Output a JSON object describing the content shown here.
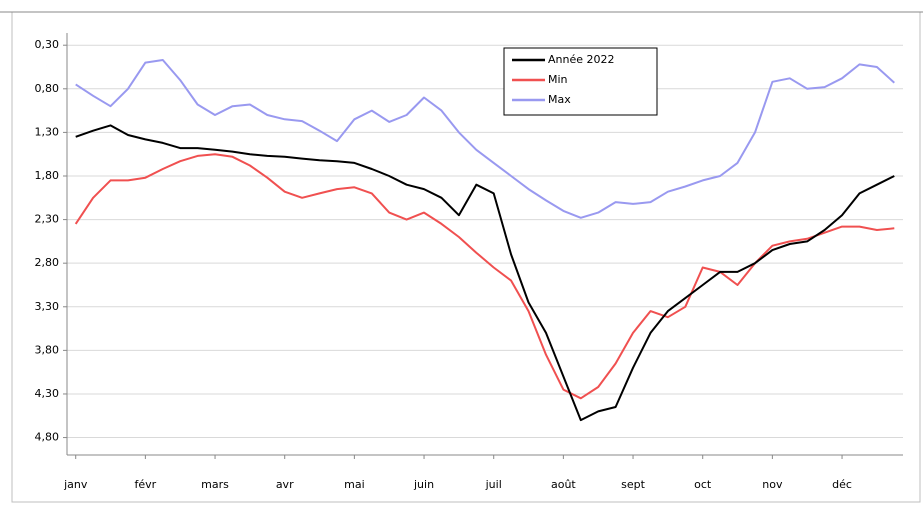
{
  "chart_data": {
    "type": "line",
    "categories": [
      "janv",
      null,
      null,
      null,
      "févr",
      null,
      null,
      null,
      "mars",
      null,
      null,
      null,
      "avr",
      null,
      null,
      null,
      "mai",
      null,
      null,
      null,
      "juin",
      null,
      null,
      null,
      "juil",
      null,
      null,
      null,
      "août",
      null,
      null,
      null,
      "sept",
      null,
      null,
      null,
      "oct",
      null,
      null,
      null,
      "nov",
      null,
      null,
      null,
      "déc",
      null,
      null,
      null
    ],
    "series": [
      {
        "name": "Année 2022",
        "color": "#000000",
        "values": [
          1.35,
          1.28,
          1.22,
          1.33,
          1.38,
          1.42,
          1.48,
          1.48,
          1.5,
          1.52,
          1.55,
          1.57,
          1.58,
          1.6,
          1.62,
          1.63,
          1.65,
          1.72,
          1.8,
          1.9,
          1.95,
          2.05,
          2.25,
          1.9,
          2.0,
          2.7,
          3.25,
          3.6,
          4.1,
          4.6,
          4.5,
          4.45,
          4.0,
          3.6,
          3.35,
          3.2,
          3.05,
          2.9,
          2.9,
          2.8,
          2.65,
          2.58,
          2.55,
          2.42,
          2.25,
          2.0,
          1.9,
          1.8
        ]
      },
      {
        "name": "Min",
        "color": "#f05050",
        "values": [
          2.35,
          2.05,
          1.85,
          1.85,
          1.82,
          1.72,
          1.63,
          1.57,
          1.55,
          1.58,
          1.68,
          1.82,
          1.98,
          2.05,
          2.0,
          1.95,
          1.93,
          2.0,
          2.22,
          2.3,
          2.22,
          2.35,
          2.5,
          2.68,
          2.85,
          3.0,
          3.35,
          3.85,
          4.25,
          4.35,
          4.22,
          3.95,
          3.6,
          3.35,
          3.42,
          3.3,
          2.85,
          2.9,
          3.05,
          2.8,
          2.6,
          2.55,
          2.52,
          2.45,
          2.38,
          2.38,
          2.42,
          2.4
        ]
      },
      {
        "name": "Max",
        "color": "#9999f0",
        "values": [
          0.75,
          0.88,
          1.0,
          0.8,
          0.5,
          0.47,
          0.7,
          0.98,
          1.1,
          1.0,
          0.98,
          1.1,
          1.15,
          1.17,
          1.28,
          1.4,
          1.15,
          1.05,
          1.18,
          1.1,
          0.9,
          1.05,
          1.3,
          1.5,
          1.65,
          1.8,
          1.95,
          2.08,
          2.2,
          2.28,
          2.22,
          2.1,
          2.12,
          2.1,
          1.98,
          1.92,
          1.85,
          1.8,
          1.65,
          1.3,
          0.72,
          0.68,
          0.8,
          0.78,
          0.68,
          0.52,
          0.55,
          0.73
        ]
      }
    ],
    "ylim": [
      0.16,
      5.0
    ],
    "reversed": true,
    "yticks": [
      {
        "value": 0.3,
        "label": "0,30"
      },
      {
        "value": 0.8,
        "label": "0,80"
      },
      {
        "value": 1.3,
        "label": "1,30"
      },
      {
        "value": 1.8,
        "label": "1,80"
      },
      {
        "value": 2.3,
        "label": "2,30"
      },
      {
        "value": 2.8,
        "label": "2,80"
      },
      {
        "value": 3.3,
        "label": "3,30"
      },
      {
        "value": 3.8,
        "label": "3,80"
      },
      {
        "value": 4.3,
        "label": "4,30"
      },
      {
        "value": 4.8,
        "label": "4,80"
      }
    ],
    "grid": true
  }
}
